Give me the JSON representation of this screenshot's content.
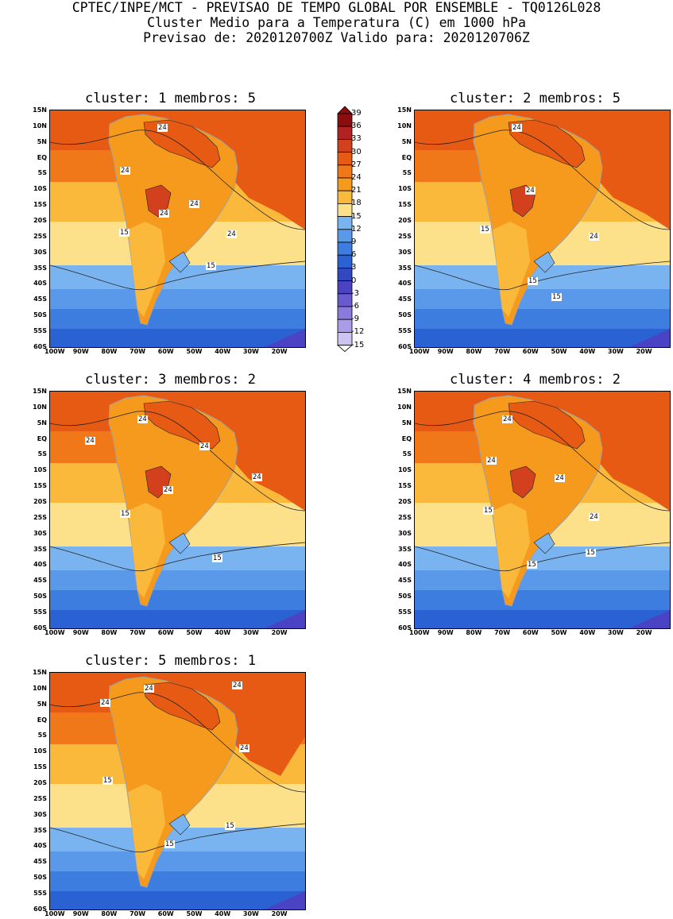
{
  "header": {
    "line1": "CPTEC/INPE/MCT - PREVISAO DE TEMPO GLOBAL POR ENSEMBLE - TQ0126L028",
    "line2": "Cluster Medio para a Temperatura (C) em 1000 hPa",
    "line3": "Previsao de: 2020120700Z   Valido para: 2020120706Z"
  },
  "lat_ticks": [
    "15N",
    "10N",
    "5N",
    "EQ",
    "5S",
    "10S",
    "15S",
    "20S",
    "25S",
    "30S",
    "35S",
    "40S",
    "45S",
    "50S",
    "55S",
    "60S"
  ],
  "lon_ticks": [
    "100W",
    "90W",
    "80W",
    "70W",
    "60W",
    "50W",
    "40W",
    "30W",
    "20W"
  ],
  "colorbar": {
    "labels": [
      "39",
      "36",
      "33",
      "30",
      "27",
      "24",
      "21",
      "18",
      "15",
      "12",
      "9",
      "6",
      "3",
      "0",
      "-3",
      "-6",
      "-9",
      "-12",
      "-15"
    ],
    "colors": [
      "#8b0d0d",
      "#b22222",
      "#d2401e",
      "#e65a14",
      "#f07818",
      "#f69a1e",
      "#fbb93c",
      "#fde08a",
      "#7ab4f0",
      "#5a98ea",
      "#3d7de0",
      "#2a62d4",
      "#3248c0",
      "#4a44c4",
      "#6a5ad0",
      "#8a7ade",
      "#ab9cea",
      "#cec4f4"
    ]
  },
  "panels": [
    {
      "title": "cluster: 1   membros: 5",
      "labels": [
        {
          "text": "24",
          "x": 135,
          "y": 17
        },
        {
          "text": "24",
          "x": 88,
          "y": 71
        },
        {
          "text": "24",
          "x": 137,
          "y": 125
        },
        {
          "text": "24",
          "x": 175,
          "y": 113
        },
        {
          "text": "24",
          "x": 222,
          "y": 151
        },
        {
          "text": "15",
          "x": 87,
          "y": 149
        },
        {
          "text": "15",
          "x": 196,
          "y": 191
        }
      ]
    },
    {
      "title": "cluster: 2   membros: 5",
      "labels": [
        {
          "text": "24",
          "x": 122,
          "y": 17
        },
        {
          "text": "24",
          "x": 139,
          "y": 96
        },
        {
          "text": "24",
          "x": 219,
          "y": 154
        },
        {
          "text": "15",
          "x": 82,
          "y": 145
        },
        {
          "text": "15",
          "x": 142,
          "y": 210
        },
        {
          "text": "15",
          "x": 172,
          "y": 230
        }
      ]
    },
    {
      "title": "cluster: 3   membros: 2",
      "labels": [
        {
          "text": "24",
          "x": 110,
          "y": 30
        },
        {
          "text": "24",
          "x": 44,
          "y": 57
        },
        {
          "text": "24",
          "x": 188,
          "y": 64
        },
        {
          "text": "24",
          "x": 254,
          "y": 103
        },
        {
          "text": "24",
          "x": 142,
          "y": 119
        },
        {
          "text": "15",
          "x": 88,
          "y": 149
        },
        {
          "text": "15",
          "x": 204,
          "y": 205
        }
      ]
    },
    {
      "title": "cluster: 4   membros: 2",
      "labels": [
        {
          "text": "24",
          "x": 110,
          "y": 30
        },
        {
          "text": "24",
          "x": 90,
          "y": 82
        },
        {
          "text": "24",
          "x": 176,
          "y": 104
        },
        {
          "text": "24",
          "x": 219,
          "y": 153
        },
        {
          "text": "15",
          "x": 86,
          "y": 145
        },
        {
          "text": "15",
          "x": 141,
          "y": 213
        },
        {
          "text": "15",
          "x": 215,
          "y": 198
        }
      ]
    },
    {
      "title": "cluster: 5   membros: 1",
      "labels": [
        {
          "text": "24",
          "x": 118,
          "y": 15
        },
        {
          "text": "24",
          "x": 229,
          "y": 11
        },
        {
          "text": "24",
          "x": 63,
          "y": 33
        },
        {
          "text": "24",
          "x": 238,
          "y": 90
        },
        {
          "text": "15",
          "x": 66,
          "y": 131
        },
        {
          "text": "15",
          "x": 220,
          "y": 188
        },
        {
          "text": "15",
          "x": 144,
          "y": 211
        }
      ]
    }
  ]
}
